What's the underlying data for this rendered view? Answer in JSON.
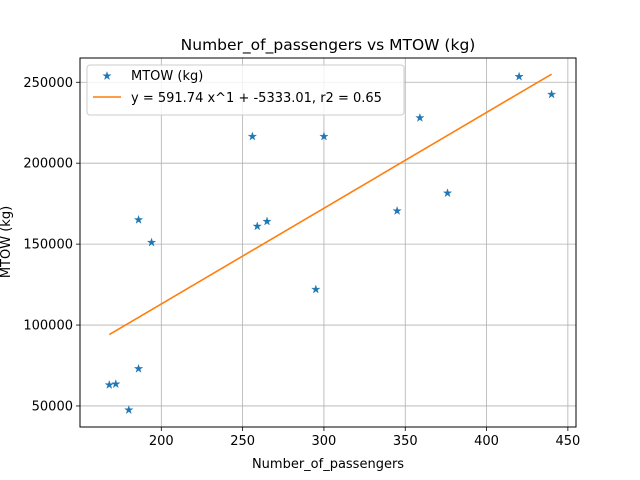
{
  "chart_data": {
    "type": "scatter",
    "title": "Number_of_passengers vs MTOW (kg)",
    "xlabel": "Number_of_passengers",
    "ylabel": "MTOW (kg)",
    "xlim": [
      150,
      455
    ],
    "ylim": [
      37000,
      265000
    ],
    "x_ticks": [
      200,
      250,
      300,
      350,
      400,
      450
    ],
    "y_ticks": [
      50000,
      100000,
      150000,
      200000,
      250000
    ],
    "x_tick_labels": [
      "200",
      "250",
      "300",
      "350",
      "400",
      "450"
    ],
    "y_tick_labels": [
      "50000",
      "100000",
      "150000",
      "200000",
      "250000"
    ],
    "grid": true,
    "legend_position": "top-left",
    "colors": {
      "points": "#1f77b4",
      "fit": "#ff7f0e"
    },
    "series": [
      {
        "name": "MTOW (kg)",
        "kind": "points",
        "marker": "star",
        "x": [
          168,
          172,
          180,
          186,
          186,
          194,
          256,
          259,
          265,
          295,
          300,
          345,
          359,
          376,
          420,
          440
        ],
        "y": [
          63000,
          63500,
          47500,
          73000,
          165000,
          151000,
          216500,
          161000,
          164000,
          122000,
          216500,
          170500,
          228000,
          181500,
          253500,
          242500
        ]
      },
      {
        "name": "y = 591.74 x^1 + -5333.01, r2 = 0.65",
        "kind": "line",
        "x": [
          168,
          440
        ],
        "y": [
          94080,
          255033
        ]
      }
    ]
  }
}
